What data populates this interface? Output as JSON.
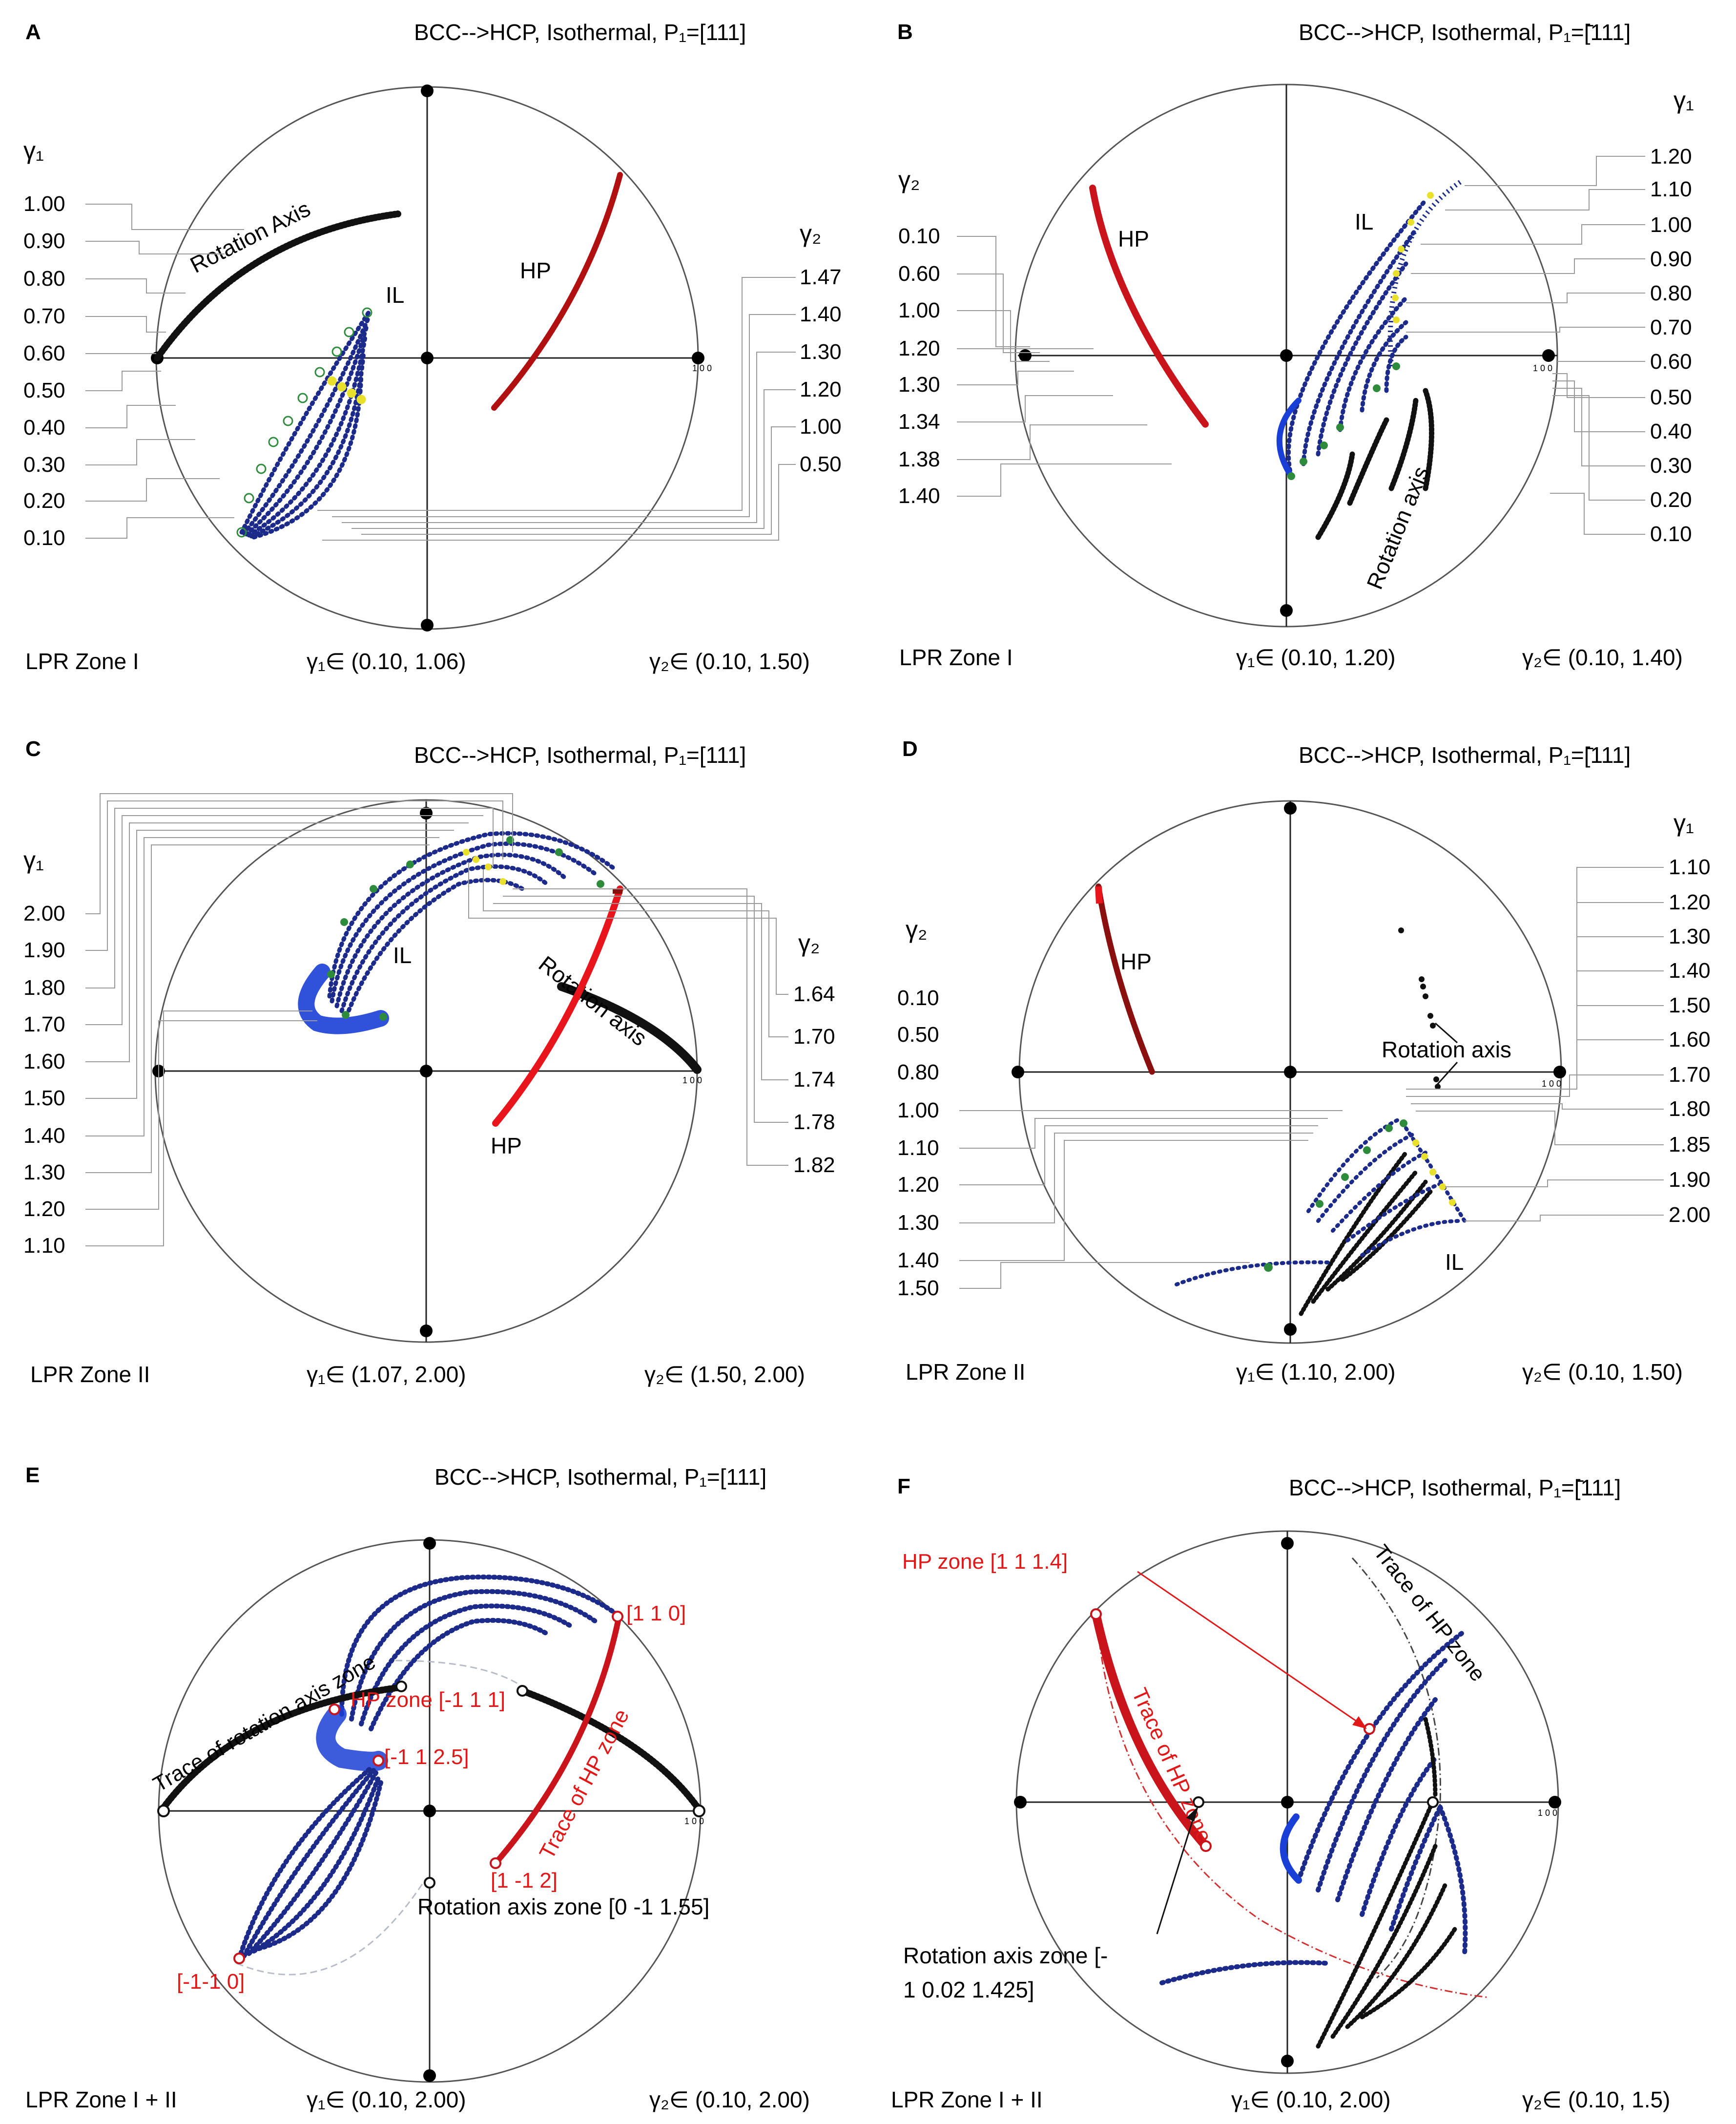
{
  "panels": [
    {
      "id": "A",
      "title": "BCC-->HCP, Isothermal, P₁=[111]",
      "zone": "LPR Zone I",
      "g1_range": "γ₁∈ (0.10, 1.06)",
      "g2_range": "γ₂∈ (0.10, 1.50)",
      "left_axis_label": "γ₁",
      "left_ticks": [
        "1.00",
        "0.90",
        "0.80",
        "0.70",
        "0.60",
        "0.50",
        "0.40",
        "0.30",
        "0.20",
        "0.10"
      ],
      "right_axis_label": "γ₂",
      "right_ticks": [
        "1.47",
        "1.40",
        "1.30",
        "1.20",
        "1.00",
        "0.50"
      ],
      "labels": [
        "Rotation Axis",
        "IL",
        "HP"
      ],
      "pole_label": "1 0 0"
    },
    {
      "id": "B",
      "title": "BCC-->HCP, Isothermal, P₁=[̄111]",
      "zone": "LPR Zone I",
      "g1_range": "γ₁∈ (0.10, 1.20)",
      "g2_range": "γ₂∈ (0.10, 1.40)",
      "left_axis_label": "γ₂",
      "left_ticks": [
        "0.10",
        "0.60",
        "1.00",
        "1.20",
        "1.30",
        "1.34",
        "1.38",
        "1.40"
      ],
      "right_axis_label": "γ₁",
      "right_ticks": [
        "1.20",
        "1.10",
        "1.00",
        "0.90",
        "0.80",
        "0.70",
        "0.60",
        "0.50",
        "0.40",
        "0.30",
        "0.20",
        "0.10"
      ],
      "labels": [
        "HP",
        "IL",
        "Rotation axis"
      ],
      "pole_label": "1 0 0"
    },
    {
      "id": "C",
      "title": "BCC-->HCP, Isothermal, P₁=[111]",
      "zone": "LPR Zone II",
      "g1_range": "γ₁∈ (1.07, 2.00)",
      "g2_range": "γ₂∈ (1.50, 2.00)",
      "left_axis_label": "γ₁",
      "left_ticks": [
        "2.00",
        "1.90",
        "1.80",
        "1.70",
        "1.60",
        "1.50",
        "1.40",
        "1.30",
        "1.20",
        "1.10"
      ],
      "right_axis_label": "γ₂",
      "right_ticks": [
        "1.64",
        "1.70",
        "1.74",
        "1.78",
        "1.82"
      ],
      "labels": [
        "IL",
        "Rotation axis",
        "HP"
      ],
      "pole_label": "1 0 0"
    },
    {
      "id": "D",
      "title": "BCC-->HCP, Isothermal, P₁=[̄111]",
      "zone": "LPR Zone II",
      "g1_range": "γ₁∈ (1.10, 2.00)",
      "g2_range": "γ₂∈ (0.10, 1.50)",
      "left_axis_label": "γ₂",
      "left_ticks": [
        "0.10",
        "0.50",
        "0.80",
        "1.00",
        "1.10",
        "1.20",
        "1.30",
        "1.40",
        "1.50"
      ],
      "right_axis_label": "γ₁",
      "right_ticks": [
        "1.10",
        "1.20",
        "1.30",
        "1.40",
        "1.50",
        "1.60",
        "1.70",
        "1.80",
        "1.85",
        "1.90",
        "2.00"
      ],
      "labels": [
        "HP",
        "Rotation axis",
        "IL"
      ],
      "pole_label": "1 0 0"
    },
    {
      "id": "E",
      "title": "BCC-->HCP, Isothermal, P₁=[111]",
      "zone": "LPR Zone I + II",
      "g1_range": "γ₁∈ (0.10, 2.00)",
      "g2_range": "γ₂∈ (0.10, 2.00)",
      "labels_black": [
        "Trace of rotation axis zone",
        "Rotation axis zone [0 -1 1.55]"
      ],
      "labels_red": [
        "[1 1 0]",
        "HP zone [-1 1 1]",
        "[-1 1 2.5]",
        "Trace of HP zone",
        "[1 -1 2]",
        "[-1-1 0]"
      ],
      "pole_label": "1 0 0"
    },
    {
      "id": "F",
      "title": "BCC-->HCP, Isothermal, P₁=[̄111]",
      "zone": "LPR Zone I + II",
      "g1_range": "γ₁∈ (0.10, 2.00)",
      "g2_range": "γ₂∈ (0.10, 1.5)",
      "labels_black": [
        "Trace of HP zone",
        "Rotation axis zone [-",
        "1 0.02 1.425]"
      ],
      "labels_red": [
        "HP zone [1 1 1.4]",
        "Trace of HP zone"
      ],
      "pole_label": "1 0 0"
    }
  ],
  "colors": {
    "circle": "#555555",
    "axes": "#222222",
    "black_series": "#111111",
    "blue_series": "#1c2a8a",
    "bright_blue": "#1a3fd6",
    "red_series": "#c8141a",
    "dark_red": "#8a1010",
    "green_marker": "#2e8b3c",
    "yellow_marker": "#e8e02a",
    "leader": "#9a9a9a",
    "trace_gray": "#b8bcc8"
  }
}
